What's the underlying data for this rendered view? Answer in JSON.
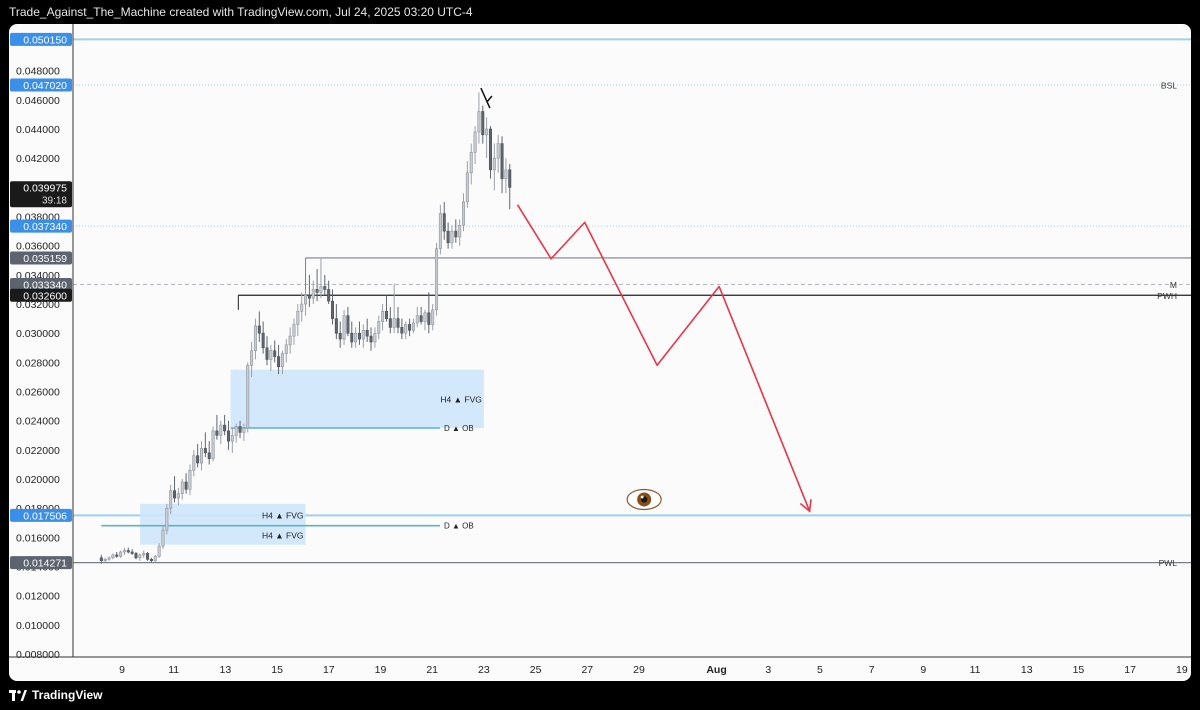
{
  "header": {
    "attribution": "Trade_Against_The_Machine created with TradingView.com, Jul 24, 2025 03:20 UTC-4"
  },
  "footer": {
    "brand": "TradingView"
  },
  "colors": {
    "up_candle": "#c8ccd2",
    "down_candle": "#5f6670",
    "blue_level": "#9fd0ee",
    "fvg_fill": "#cfe5fb",
    "ob_line": "#5ab4c2",
    "path_red": "#e8364a",
    "badge_blue": "#3a8fe8",
    "badge_gray": "#5d6470",
    "badge_black": "#1a1a1a"
  },
  "chart_data": {
    "type": "candlestick",
    "ylim": [
      0.0078,
      0.0512
    ],
    "y_ticks": [
      "0.048000",
      "0.046000",
      "0.044000",
      "0.042000",
      "0.040000",
      "0.038000",
      "0.036000",
      "0.034000",
      "0.032000",
      "0.030000",
      "0.028000",
      "0.026000",
      "0.024000",
      "0.022000",
      "0.020000",
      "0.018000",
      "0.016000",
      "0.014000",
      "0.012000",
      "0.010000",
      "0.008000"
    ],
    "x_ticks": [
      {
        "label": "9",
        "t": 9
      },
      {
        "label": "11",
        "t": 11
      },
      {
        "label": "13",
        "t": 13
      },
      {
        "label": "15",
        "t": 15
      },
      {
        "label": "17",
        "t": 17
      },
      {
        "label": "19",
        "t": 19
      },
      {
        "label": "21",
        "t": 21
      },
      {
        "label": "23",
        "t": 23
      },
      {
        "label": "25",
        "t": 25
      },
      {
        "label": "27",
        "t": 27
      },
      {
        "label": "29",
        "t": 29
      },
      {
        "label": "Aug",
        "t": 32,
        "bold": true
      },
      {
        "label": "3",
        "t": 34
      },
      {
        "label": "5",
        "t": 36
      },
      {
        "label": "7",
        "t": 38
      },
      {
        "label": "9",
        "t": 40
      },
      {
        "label": "11",
        "t": 42
      },
      {
        "label": "13",
        "t": 44
      },
      {
        "label": "15",
        "t": 46
      },
      {
        "label": "17",
        "t": 48
      },
      {
        "label": "19",
        "t": 50
      }
    ],
    "price_badges": [
      {
        "label": "0.050150",
        "value": 0.05015,
        "style": "blue"
      },
      {
        "label": "0.047020",
        "value": 0.04702,
        "style": "blue"
      },
      {
        "label": "0.039975",
        "sub": "39:18",
        "value": 0.039975,
        "style": "black"
      },
      {
        "label": "0.037340",
        "value": 0.03734,
        "style": "blue"
      },
      {
        "label": "0.035159",
        "value": 0.035159,
        "style": "gray"
      },
      {
        "label": "0.033340",
        "value": 0.03334,
        "style": "gray"
      },
      {
        "label": "0.032600",
        "value": 0.0326,
        "style": "black"
      },
      {
        "label": "0.017506",
        "value": 0.017506,
        "style": "blue"
      },
      {
        "label": "0.014271",
        "value": 0.014271,
        "style": "gray"
      }
    ],
    "levels": [
      {
        "value": 0.05015,
        "style": "blue-solid",
        "label": ""
      },
      {
        "value": 0.04702,
        "style": "blue-dotted",
        "label": "BSL"
      },
      {
        "value": 0.03734,
        "style": "blue-dotted",
        "label": ""
      },
      {
        "value": 0.035159,
        "style": "gray-solid",
        "from_t": 16.1,
        "label": ""
      },
      {
        "value": 0.03334,
        "style": "gray-dashed",
        "label": "M"
      },
      {
        "value": 0.0326,
        "style": "black-solid",
        "from_t": 13.5,
        "label": "PWH"
      },
      {
        "value": 0.017506,
        "style": "blue-solid",
        "label": ""
      },
      {
        "value": 0.014271,
        "style": "gray-solid",
        "label": "PWL"
      }
    ],
    "zones": [
      {
        "label": "H4 ▲ FVG",
        "t0": 13.2,
        "t1": 23.0,
        "y0": 0.0235,
        "y1": 0.0275
      },
      {
        "label": "H4 ▲ FVG",
        "t0": 9.7,
        "t1": 16.1,
        "y0": 0.0168,
        "y1": 0.0183
      },
      {
        "label": "H4 ▲ FVG",
        "t0": 9.7,
        "t1": 16.1,
        "y0": 0.0155,
        "y1": 0.0168
      }
    ],
    "order_blocks": [
      {
        "label": "D ▲ OB",
        "t0": 13.2,
        "t1": 21.3,
        "value": 0.0235
      },
      {
        "label": "D ▲ OB",
        "t0": 8.2,
        "t1": 21.3,
        "value": 0.0168
      }
    ],
    "projection_path": [
      {
        "t": 24.3,
        "v": 0.0388
      },
      {
        "t": 25.6,
        "v": 0.0351
      },
      {
        "t": 26.9,
        "v": 0.0376
      },
      {
        "t": 29.7,
        "v": 0.0278
      },
      {
        "t": 32.1,
        "v": 0.0332
      },
      {
        "t": 35.6,
        "v": 0.0178
      }
    ],
    "eye_marker": {
      "t": 29.2,
      "v": 0.0186
    },
    "candles": [
      [
        0.0146,
        0.0148,
        0.0142,
        0.0144
      ],
      [
        0.0144,
        0.0146,
        0.0143,
        0.0145
      ],
      [
        0.0145,
        0.0147,
        0.0144,
        0.0146
      ],
      [
        0.0146,
        0.0149,
        0.0145,
        0.0148
      ],
      [
        0.0148,
        0.015,
        0.0146,
        0.0147
      ],
      [
        0.0147,
        0.0151,
        0.0146,
        0.015
      ],
      [
        0.015,
        0.0153,
        0.0148,
        0.0151
      ],
      [
        0.0151,
        0.0153,
        0.0149,
        0.015
      ],
      [
        0.015,
        0.0152,
        0.0148,
        0.0149
      ],
      [
        0.0149,
        0.015,
        0.0145,
        0.0146
      ],
      [
        0.0146,
        0.0149,
        0.0144,
        0.0148
      ],
      [
        0.0148,
        0.0151,
        0.0146,
        0.0149
      ],
      [
        0.0149,
        0.015,
        0.0144,
        0.0145
      ],
      [
        0.0145,
        0.0146,
        0.0143,
        0.0144
      ],
      [
        0.0144,
        0.0148,
        0.0143,
        0.0147
      ],
      [
        0.0147,
        0.0156,
        0.0146,
        0.0154
      ],
      [
        0.0154,
        0.0168,
        0.0152,
        0.0165
      ],
      [
        0.0165,
        0.0183,
        0.0162,
        0.018
      ],
      [
        0.018,
        0.0196,
        0.0176,
        0.0192
      ],
      [
        0.0192,
        0.0202,
        0.0184,
        0.0187
      ],
      [
        0.0187,
        0.0194,
        0.0182,
        0.019
      ],
      [
        0.019,
        0.02,
        0.0186,
        0.0198
      ],
      [
        0.0198,
        0.0204,
        0.019,
        0.0193
      ],
      [
        0.0193,
        0.021,
        0.0189,
        0.0206
      ],
      [
        0.0206,
        0.022,
        0.0202,
        0.0216
      ],
      [
        0.0216,
        0.0224,
        0.0208,
        0.0211
      ],
      [
        0.0211,
        0.0226,
        0.0206,
        0.0221
      ],
      [
        0.0221,
        0.0232,
        0.0215,
        0.0218
      ],
      [
        0.0218,
        0.0226,
        0.021,
        0.0214
      ],
      [
        0.0214,
        0.0236,
        0.0212,
        0.0233
      ],
      [
        0.0233,
        0.0244,
        0.0227,
        0.023
      ],
      [
        0.023,
        0.024,
        0.0224,
        0.0237
      ],
      [
        0.0237,
        0.0244,
        0.023,
        0.0233
      ],
      [
        0.0233,
        0.024,
        0.022,
        0.0226
      ],
      [
        0.0226,
        0.0235,
        0.0218,
        0.023
      ],
      [
        0.023,
        0.0238,
        0.0225,
        0.0236
      ],
      [
        0.0236,
        0.024,
        0.0228,
        0.0232
      ],
      [
        0.0232,
        0.0238,
        0.0226,
        0.0235
      ],
      [
        0.0235,
        0.028,
        0.0232,
        0.0278
      ],
      [
        0.0278,
        0.0294,
        0.027,
        0.0288
      ],
      [
        0.0288,
        0.031,
        0.0282,
        0.0305
      ],
      [
        0.0305,
        0.0315,
        0.0294,
        0.03
      ],
      [
        0.03,
        0.0308,
        0.0286,
        0.029
      ],
      [
        0.029,
        0.0298,
        0.0278,
        0.0282
      ],
      [
        0.0282,
        0.0292,
        0.0274,
        0.0288
      ],
      [
        0.0288,
        0.0295,
        0.028,
        0.0284
      ],
      [
        0.0284,
        0.0292,
        0.0272,
        0.0277
      ],
      [
        0.0277,
        0.0288,
        0.0272,
        0.0286
      ],
      [
        0.0286,
        0.0296,
        0.028,
        0.0292
      ],
      [
        0.0292,
        0.0304,
        0.0286,
        0.0298
      ],
      [
        0.0298,
        0.031,
        0.0292,
        0.0306
      ],
      [
        0.0306,
        0.032,
        0.0298,
        0.0315
      ],
      [
        0.0315,
        0.0328,
        0.0308,
        0.032
      ],
      [
        0.032,
        0.033,
        0.0312,
        0.0326
      ],
      [
        0.0326,
        0.034,
        0.0318,
        0.0324
      ],
      [
        0.0324,
        0.0336,
        0.032,
        0.033
      ],
      [
        0.033,
        0.0344,
        0.0322,
        0.0328
      ],
      [
        0.0328,
        0.0352,
        0.0324,
        0.0332
      ],
      [
        0.0332,
        0.034,
        0.0326,
        0.033
      ],
      [
        0.033,
        0.0336,
        0.032,
        0.0322
      ],
      [
        0.0322,
        0.033,
        0.0306,
        0.031
      ],
      [
        0.031,
        0.032,
        0.0296,
        0.03
      ],
      [
        0.03,
        0.0308,
        0.029,
        0.0296
      ],
      [
        0.0296,
        0.0316,
        0.0292,
        0.0312
      ],
      [
        0.0312,
        0.0318,
        0.0298,
        0.03
      ],
      [
        0.03,
        0.0308,
        0.029,
        0.0294
      ],
      [
        0.0294,
        0.0304,
        0.029,
        0.03
      ],
      [
        0.03,
        0.0308,
        0.0292,
        0.0296
      ],
      [
        0.0296,
        0.0306,
        0.029,
        0.0302
      ],
      [
        0.0302,
        0.031,
        0.0294,
        0.0298
      ],
      [
        0.0298,
        0.0304,
        0.0288,
        0.0294
      ],
      [
        0.0294,
        0.0304,
        0.029,
        0.03
      ],
      [
        0.03,
        0.0312,
        0.0296,
        0.0308
      ],
      [
        0.0308,
        0.032,
        0.0302,
        0.0315
      ],
      [
        0.0315,
        0.0326,
        0.0308,
        0.031
      ],
      [
        0.031,
        0.0318,
        0.03,
        0.0304
      ],
      [
        0.0304,
        0.0334,
        0.03,
        0.031
      ],
      [
        0.031,
        0.0318,
        0.03,
        0.0304
      ],
      [
        0.0304,
        0.031,
        0.0296,
        0.03
      ],
      [
        0.03,
        0.0308,
        0.0296,
        0.0306
      ],
      [
        0.0306,
        0.031,
        0.0298,
        0.0302
      ],
      [
        0.0302,
        0.031,
        0.03,
        0.0307
      ],
      [
        0.0307,
        0.0318,
        0.0304,
        0.0312
      ],
      [
        0.0312,
        0.0318,
        0.0306,
        0.0308
      ],
      [
        0.0308,
        0.0316,
        0.0302,
        0.0314
      ],
      [
        0.0314,
        0.0328,
        0.03,
        0.0306
      ],
      [
        0.0306,
        0.032,
        0.0302,
        0.0316
      ],
      [
        0.0316,
        0.0362,
        0.0312,
        0.0358
      ],
      [
        0.0358,
        0.0388,
        0.0354,
        0.0382
      ],
      [
        0.0382,
        0.039,
        0.0364,
        0.037
      ],
      [
        0.037,
        0.0376,
        0.0358,
        0.0362
      ],
      [
        0.0362,
        0.0374,
        0.0358,
        0.037
      ],
      [
        0.037,
        0.0378,
        0.0362,
        0.0366
      ],
      [
        0.0366,
        0.0378,
        0.036,
        0.0374
      ],
      [
        0.0374,
        0.0396,
        0.037,
        0.039
      ],
      [
        0.039,
        0.0418,
        0.0386,
        0.041
      ],
      [
        0.041,
        0.043,
        0.0402,
        0.0424
      ],
      [
        0.0424,
        0.0442,
        0.0416,
        0.0438
      ],
      [
        0.0438,
        0.0465,
        0.043,
        0.0452
      ],
      [
        0.0452,
        0.0456,
        0.043,
        0.0436
      ],
      [
        0.0436,
        0.0448,
        0.042,
        0.044
      ],
      [
        0.044,
        0.0442,
        0.0406,
        0.0412
      ],
      [
        0.0412,
        0.043,
        0.0398,
        0.042
      ],
      [
        0.042,
        0.0436,
        0.041,
        0.043
      ],
      [
        0.043,
        0.0435,
        0.0396,
        0.0406
      ],
      [
        0.0406,
        0.042,
        0.0396,
        0.0412
      ],
      [
        0.0412,
        0.0416,
        0.0385,
        0.04
      ]
    ]
  }
}
